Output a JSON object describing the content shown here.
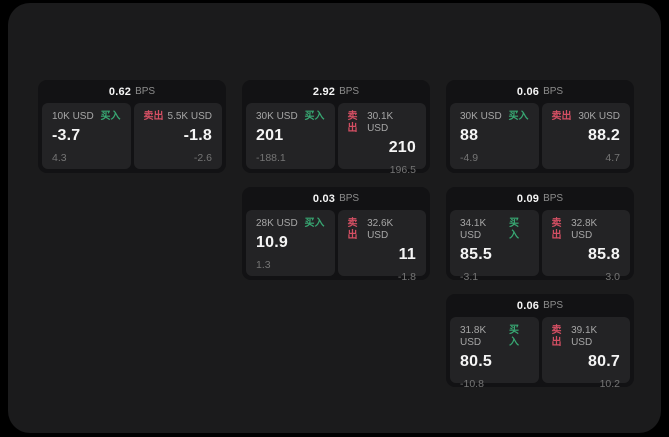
{
  "colors": {
    "page_bg": "#000000",
    "window_bg": "#1b1b1c",
    "card_bg": "#121214",
    "panel_bg": "#232325",
    "buy_green": "#38a873",
    "sell_red": "#d44f63",
    "value_white": "#f5f5f5",
    "amount_gray": "#a6a6a6",
    "bps_unit_gray": "#8d8d8d",
    "sub_gray": "#757575"
  },
  "labels": {
    "bps_suffix": "BPS",
    "buy": "买入",
    "sell": "卖出"
  },
  "cards": [
    {
      "row": 1,
      "col": 1,
      "bps": "0.62",
      "buy": {
        "amount": "10K USD",
        "value": "-3.7",
        "sub": "4.3"
      },
      "sell": {
        "amount": "5.5K USD",
        "value": "-1.8",
        "sub": "-2.6"
      }
    },
    {
      "row": 1,
      "col": 2,
      "bps": "2.92",
      "buy": {
        "amount": "30K USD",
        "value": "201",
        "sub": "-188.1"
      },
      "sell": {
        "amount": "30.1K USD",
        "value": "210",
        "sub": "196.5"
      }
    },
    {
      "row": 1,
      "col": 3,
      "bps": "0.06",
      "buy": {
        "amount": "30K USD",
        "value": "88",
        "sub": "-4.9"
      },
      "sell": {
        "amount": "30K USD",
        "value": "88.2",
        "sub": "4.7"
      }
    },
    {
      "row": 2,
      "col": 2,
      "bps": "0.03",
      "buy": {
        "amount": "28K USD",
        "value": "10.9",
        "sub": "1.3"
      },
      "sell": {
        "amount": "32.6K USD",
        "value": "11",
        "sub": "-1.8"
      }
    },
    {
      "row": 2,
      "col": 3,
      "bps": "0.09",
      "buy": {
        "amount": "34.1K USD",
        "value": "85.5",
        "sub": "-3.1"
      },
      "sell": {
        "amount": "32.8K USD",
        "value": "85.8",
        "sub": "3.0"
      }
    },
    {
      "row": 3,
      "col": 3,
      "bps": "0.06",
      "buy": {
        "amount": "31.8K USD",
        "value": "80.5",
        "sub": "-10.8"
      },
      "sell": {
        "amount": "39.1K USD",
        "value": "80.7",
        "sub": "10.2"
      }
    }
  ]
}
